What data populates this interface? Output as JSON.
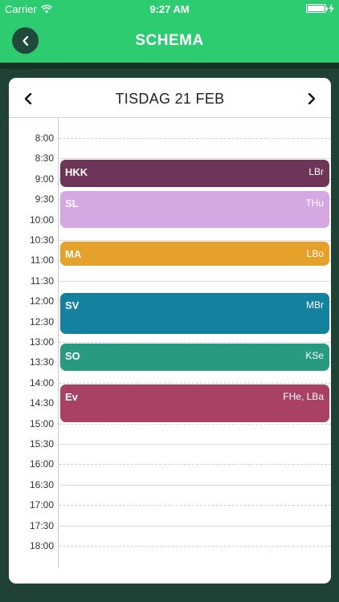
{
  "status": {
    "carrier": "Carrier",
    "time": "9:27 AM"
  },
  "nav": {
    "title": "SCHEMA"
  },
  "day": {
    "title": "TISDAG 21 FEB"
  },
  "times": [
    "8:00",
    "8:30",
    "9:00",
    "9:30",
    "10:00",
    "10:30",
    "11:00",
    "11:30",
    "12:00",
    "12:30",
    "13:00",
    "13:30",
    "14:00",
    "14:30",
    "15:00",
    "15:30",
    "16:00",
    "16:30",
    "17:00",
    "17:30",
    "18:00"
  ],
  "events": [
    {
      "title": "HKK",
      "teacher": "LBr",
      "color": "#6e3558",
      "start": "8:30",
      "end": "9:15"
    },
    {
      "title": "SL",
      "teacher": "THu",
      "color": "#d3a8e3",
      "start": "9:15",
      "end": "10:15"
    },
    {
      "title": "MA",
      "teacher": "LBo",
      "color": "#e6a12a",
      "start": "10:30",
      "end": "11:10"
    },
    {
      "title": "SV",
      "teacher": "MBr",
      "color": "#14819f",
      "start": "11:45",
      "end": "12:50"
    },
    {
      "title": "SO",
      "teacher": "KSe",
      "color": "#279a80",
      "start": "13:00",
      "end": "13:45"
    },
    {
      "title": "Ev",
      "teacher": "FHe, LBa",
      "color": "#a94165",
      "start": "14:00",
      "end": "15:00"
    }
  ]
}
